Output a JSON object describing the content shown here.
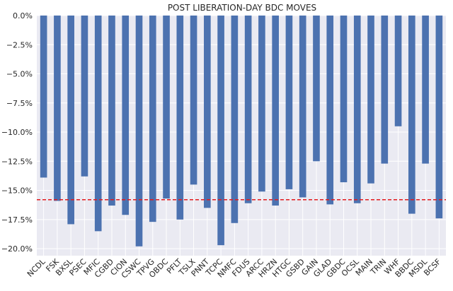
{
  "chart_data": {
    "type": "bar",
    "title": "POST LIBERATION-DAY BDC MOVES",
    "xlabel": "",
    "ylabel": "",
    "categories": [
      "NCDL",
      "FSK",
      "BXSL",
      "PSEC",
      "MFIC",
      "CGBD",
      "CION",
      "CSWC",
      "TPVG",
      "OBDC",
      "PFLT",
      "TSLX",
      "PNNT",
      "TCPC",
      "NMFC",
      "FDUS",
      "ARCC",
      "HRZN",
      "HTGC",
      "GSBD",
      "GAIN",
      "GLAD",
      "GBDC",
      "OCSL",
      "MAIN",
      "TRIN",
      "WHF",
      "BBDC",
      "MSDL",
      "BCSF"
    ],
    "values": [
      -13.9,
      -15.9,
      -17.9,
      -13.8,
      -18.5,
      -16.3,
      -17.1,
      -19.8,
      -17.7,
      -15.7,
      -17.5,
      -14.5,
      -16.5,
      -19.7,
      -17.8,
      -16.1,
      -15.1,
      -16.3,
      -14.9,
      -15.6,
      -12.5,
      -16.2,
      -14.3,
      -16.1,
      -14.4,
      -12.7,
      -9.5,
      -17.0,
      -12.7,
      -17.4
    ],
    "ylim": [
      -20.6,
      0
    ],
    "yticks": [
      0,
      -2.5,
      -5,
      -7.5,
      -10,
      -12.5,
      -15,
      -17.5,
      -20
    ],
    "ytick_labels": [
      "0.0%",
      "−2.5%",
      "−5.0%",
      "−7.5%",
      "−10.0%",
      "−12.5%",
      "−15.0%",
      "−17.5%",
      "−20.0%"
    ],
    "reference_line": {
      "value": -15.8,
      "style": "dashed"
    },
    "grid": true,
    "colors": {
      "bar": "#4c72b0",
      "background": "#eaeaf2",
      "grid": "#ffffff",
      "reference": "#e31a1c"
    }
  }
}
